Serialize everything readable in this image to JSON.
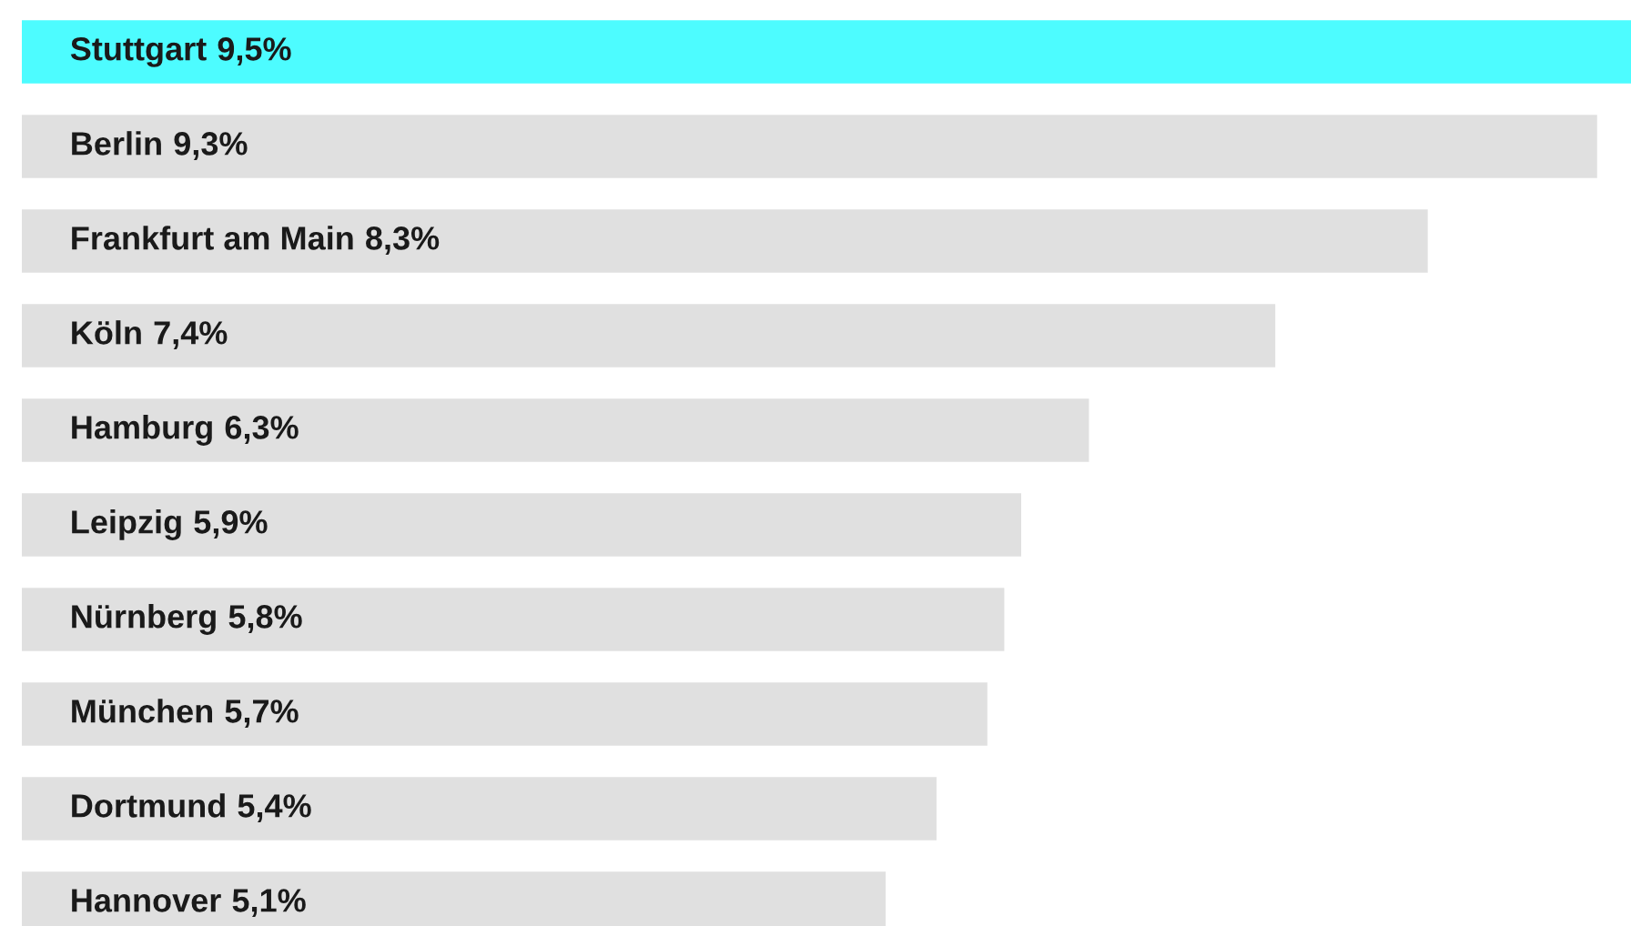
{
  "chart_data": {
    "type": "bar",
    "orientation": "horizontal",
    "categories": [
      "Stuttgart",
      "Berlin",
      "Frankfurt am Main",
      "Köln",
      "Hamburg",
      "Leipzig",
      "Nürnberg",
      "München",
      "Dortmund",
      "Hannover"
    ],
    "values": [
      9.5,
      9.3,
      8.3,
      7.4,
      6.3,
      5.9,
      5.8,
      5.7,
      5.4,
      5.1
    ],
    "value_labels": [
      "9,5%",
      "9,3%",
      "8,3%",
      "7,4%",
      "6,3%",
      "5,9%",
      "5,8%",
      "5,7%",
      "5,4%",
      "5,1%"
    ],
    "colors": [
      "#4dfcff",
      "#e0e0e0",
      "#e0e0e0",
      "#e0e0e0",
      "#e0e0e0",
      "#e0e0e0",
      "#e0e0e0",
      "#e0e0e0",
      "#e0e0e0",
      "#e0e0e0"
    ],
    "legend": false
  }
}
